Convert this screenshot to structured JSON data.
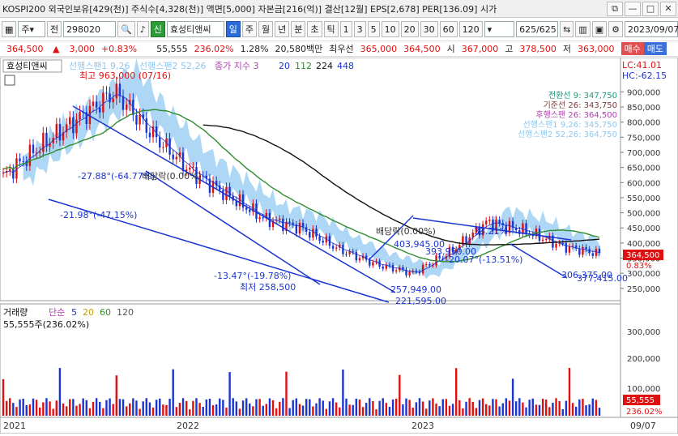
{
  "title": "KOSPI200 외국인보유[429(천)] 주식수[4,328(천)] 액면[5,000] 자본금[216(억)] 결산[12월] EPS[2,678] PER[136.09] 시가",
  "toolbar": {
    "market": "주",
    "prev": "전",
    "code": "298020",
    "stock_badge": "신",
    "stock_name": "효성티앤씨",
    "periods": [
      "일",
      "주",
      "월",
      "년",
      "분",
      "초",
      "틱"
    ],
    "intervals": [
      "1",
      "3",
      "5",
      "10",
      "20",
      "30",
      "60",
      "120"
    ],
    "count": "625/625",
    "date": "2023/09/07"
  },
  "price": {
    "current": "364,500",
    "arrow": "▲",
    "change": "3,000",
    "change_pct": "+0.83%",
    "volume": "55,555",
    "volume_pct": "236.02%",
    "turnover": "1.28%",
    "amount": "20,580백만",
    "prev_close_label": "최우선",
    "bid": "365,000",
    "ask": "364,500",
    "open_label": "시",
    "open": "367,000",
    "high_label": "고",
    "high": "378,500",
    "low_label": "저",
    "low": "363,000",
    "buy_label": "매수",
    "sell_label": "매도"
  },
  "chart_data": {
    "type": "line",
    "legend_price": {
      "stock": "효성티앤씨",
      "items": [
        "선행스팬1 9,26",
        "선행스팬2 52,26",
        "종가 지수 3",
        "20",
        "112",
        "224",
        "448"
      ]
    },
    "corner": {
      "lc": "LC:41.01",
      "hc": "HC:-62.15"
    },
    "ichimoku_labels": [
      "전환선 9: 347,750",
      "기준선 26: 343,750",
      "후행스팬 26: 364,500",
      "선행스팬1 9,26: 345,750",
      "선행스팬2 52,26: 364,750"
    ],
    "y_ticks": [
      "900,000",
      "850,000",
      "800,000",
      "750,000",
      "700,000",
      "650,000",
      "600,000",
      "550,000",
      "500,000",
      "450,000",
      "400,000",
      "350,000",
      "300,000",
      "250,000"
    ],
    "last_price_tag": "364,500",
    "last_pct_tag": "0.83%",
    "annotations": [
      "최고 963,000 (07/16)",
      "-27.88°(-64.77%)",
      "배당락(0.00%)",
      "-21.98°(-47.15%)",
      "-13.47°(-19.78%)",
      "최저 258,500",
      "403,945.00",
      "배당락(0.00%)",
      "33.21%",
      "-20.07°(-13.51%)",
      "393,950.00",
      "257,949.00",
      "221,595.00",
      "306,375.00",
      "377,415.00"
    ],
    "series": [
      {
        "name": "종가",
        "x": [
          "2021-01",
          "2021-03",
          "2021-05",
          "2021-07",
          "2021-09",
          "2021-11",
          "2022-01",
          "2022-03",
          "2022-05",
          "2022-07",
          "2022-09",
          "2022-11",
          "2023-01",
          "2023-03",
          "2023-05",
          "2023-07",
          "2023-09"
        ],
        "values": [
          620000,
          720000,
          810000,
          900000,
          760000,
          640000,
          560000,
          480000,
          450000,
          380000,
          330000,
          300000,
          370000,
          470000,
          440000,
          390000,
          364500
        ]
      }
    ],
    "volume_legend": [
      "거래량",
      "단순",
      "5",
      "20",
      "60",
      "120"
    ],
    "volume_label": "55,555주(236.02%)",
    "volume_ticks": [
      "300,000",
      "200,000",
      "100,000"
    ],
    "volume_tag": "55,555",
    "volume_pct_tag": "236.02%",
    "x_labels": [
      "2021",
      "2022",
      "2023",
      "09/07"
    ],
    "colors": {
      "candle_up": "#e01010",
      "candle_down": "#1a35d0",
      "cloud": "#9fd0f2",
      "ma20": "#2f8c2f",
      "ma112": "#111111"
    }
  }
}
